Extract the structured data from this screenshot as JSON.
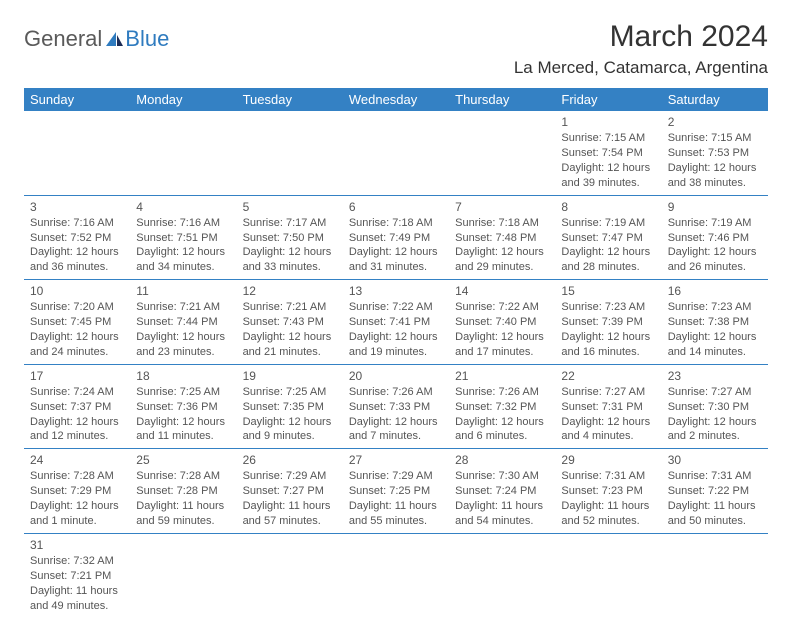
{
  "logo": {
    "text1": "General",
    "text2": "Blue"
  },
  "title": "March 2024",
  "location": "La Merced, Catamarca, Argentina",
  "colors": {
    "header_bg": "#3481c4",
    "header_text": "#ffffff",
    "row_border": "#3481c4",
    "body_text": "#555555",
    "title_text": "#333333",
    "logo_gray": "#5a5a5a",
    "logo_blue": "#2f7bbf",
    "background": "#ffffff"
  },
  "typography": {
    "title_fontsize": 30,
    "location_fontsize": 17,
    "dayheader_fontsize": 13,
    "cell_fontsize": 11,
    "font_family": "Arial"
  },
  "day_headers": [
    "Sunday",
    "Monday",
    "Tuesday",
    "Wednesday",
    "Thursday",
    "Friday",
    "Saturday"
  ],
  "weeks": [
    [
      null,
      null,
      null,
      null,
      null,
      {
        "n": "1",
        "sr": "Sunrise: 7:15 AM",
        "ss": "Sunset: 7:54 PM",
        "d1": "Daylight: 12 hours",
        "d2": "and 39 minutes."
      },
      {
        "n": "2",
        "sr": "Sunrise: 7:15 AM",
        "ss": "Sunset: 7:53 PM",
        "d1": "Daylight: 12 hours",
        "d2": "and 38 minutes."
      }
    ],
    [
      {
        "n": "3",
        "sr": "Sunrise: 7:16 AM",
        "ss": "Sunset: 7:52 PM",
        "d1": "Daylight: 12 hours",
        "d2": "and 36 minutes."
      },
      {
        "n": "4",
        "sr": "Sunrise: 7:16 AM",
        "ss": "Sunset: 7:51 PM",
        "d1": "Daylight: 12 hours",
        "d2": "and 34 minutes."
      },
      {
        "n": "5",
        "sr": "Sunrise: 7:17 AM",
        "ss": "Sunset: 7:50 PM",
        "d1": "Daylight: 12 hours",
        "d2": "and 33 minutes."
      },
      {
        "n": "6",
        "sr": "Sunrise: 7:18 AM",
        "ss": "Sunset: 7:49 PM",
        "d1": "Daylight: 12 hours",
        "d2": "and 31 minutes."
      },
      {
        "n": "7",
        "sr": "Sunrise: 7:18 AM",
        "ss": "Sunset: 7:48 PM",
        "d1": "Daylight: 12 hours",
        "d2": "and 29 minutes."
      },
      {
        "n": "8",
        "sr": "Sunrise: 7:19 AM",
        "ss": "Sunset: 7:47 PM",
        "d1": "Daylight: 12 hours",
        "d2": "and 28 minutes."
      },
      {
        "n": "9",
        "sr": "Sunrise: 7:19 AM",
        "ss": "Sunset: 7:46 PM",
        "d1": "Daylight: 12 hours",
        "d2": "and 26 minutes."
      }
    ],
    [
      {
        "n": "10",
        "sr": "Sunrise: 7:20 AM",
        "ss": "Sunset: 7:45 PM",
        "d1": "Daylight: 12 hours",
        "d2": "and 24 minutes."
      },
      {
        "n": "11",
        "sr": "Sunrise: 7:21 AM",
        "ss": "Sunset: 7:44 PM",
        "d1": "Daylight: 12 hours",
        "d2": "and 23 minutes."
      },
      {
        "n": "12",
        "sr": "Sunrise: 7:21 AM",
        "ss": "Sunset: 7:43 PM",
        "d1": "Daylight: 12 hours",
        "d2": "and 21 minutes."
      },
      {
        "n": "13",
        "sr": "Sunrise: 7:22 AM",
        "ss": "Sunset: 7:41 PM",
        "d1": "Daylight: 12 hours",
        "d2": "and 19 minutes."
      },
      {
        "n": "14",
        "sr": "Sunrise: 7:22 AM",
        "ss": "Sunset: 7:40 PM",
        "d1": "Daylight: 12 hours",
        "d2": "and 17 minutes."
      },
      {
        "n": "15",
        "sr": "Sunrise: 7:23 AM",
        "ss": "Sunset: 7:39 PM",
        "d1": "Daylight: 12 hours",
        "d2": "and 16 minutes."
      },
      {
        "n": "16",
        "sr": "Sunrise: 7:23 AM",
        "ss": "Sunset: 7:38 PM",
        "d1": "Daylight: 12 hours",
        "d2": "and 14 minutes."
      }
    ],
    [
      {
        "n": "17",
        "sr": "Sunrise: 7:24 AM",
        "ss": "Sunset: 7:37 PM",
        "d1": "Daylight: 12 hours",
        "d2": "and 12 minutes."
      },
      {
        "n": "18",
        "sr": "Sunrise: 7:25 AM",
        "ss": "Sunset: 7:36 PM",
        "d1": "Daylight: 12 hours",
        "d2": "and 11 minutes."
      },
      {
        "n": "19",
        "sr": "Sunrise: 7:25 AM",
        "ss": "Sunset: 7:35 PM",
        "d1": "Daylight: 12 hours",
        "d2": "and 9 minutes."
      },
      {
        "n": "20",
        "sr": "Sunrise: 7:26 AM",
        "ss": "Sunset: 7:33 PM",
        "d1": "Daylight: 12 hours",
        "d2": "and 7 minutes."
      },
      {
        "n": "21",
        "sr": "Sunrise: 7:26 AM",
        "ss": "Sunset: 7:32 PM",
        "d1": "Daylight: 12 hours",
        "d2": "and 6 minutes."
      },
      {
        "n": "22",
        "sr": "Sunrise: 7:27 AM",
        "ss": "Sunset: 7:31 PM",
        "d1": "Daylight: 12 hours",
        "d2": "and 4 minutes."
      },
      {
        "n": "23",
        "sr": "Sunrise: 7:27 AM",
        "ss": "Sunset: 7:30 PM",
        "d1": "Daylight: 12 hours",
        "d2": "and 2 minutes."
      }
    ],
    [
      {
        "n": "24",
        "sr": "Sunrise: 7:28 AM",
        "ss": "Sunset: 7:29 PM",
        "d1": "Daylight: 12 hours",
        "d2": "and 1 minute."
      },
      {
        "n": "25",
        "sr": "Sunrise: 7:28 AM",
        "ss": "Sunset: 7:28 PM",
        "d1": "Daylight: 11 hours",
        "d2": "and 59 minutes."
      },
      {
        "n": "26",
        "sr": "Sunrise: 7:29 AM",
        "ss": "Sunset: 7:27 PM",
        "d1": "Daylight: 11 hours",
        "d2": "and 57 minutes."
      },
      {
        "n": "27",
        "sr": "Sunrise: 7:29 AM",
        "ss": "Sunset: 7:25 PM",
        "d1": "Daylight: 11 hours",
        "d2": "and 55 minutes."
      },
      {
        "n": "28",
        "sr": "Sunrise: 7:30 AM",
        "ss": "Sunset: 7:24 PM",
        "d1": "Daylight: 11 hours",
        "d2": "and 54 minutes."
      },
      {
        "n": "29",
        "sr": "Sunrise: 7:31 AM",
        "ss": "Sunset: 7:23 PM",
        "d1": "Daylight: 11 hours",
        "d2": "and 52 minutes."
      },
      {
        "n": "30",
        "sr": "Sunrise: 7:31 AM",
        "ss": "Sunset: 7:22 PM",
        "d1": "Daylight: 11 hours",
        "d2": "and 50 minutes."
      }
    ],
    [
      {
        "n": "31",
        "sr": "Sunrise: 7:32 AM",
        "ss": "Sunset: 7:21 PM",
        "d1": "Daylight: 11 hours",
        "d2": "and 49 minutes."
      },
      null,
      null,
      null,
      null,
      null,
      null
    ]
  ]
}
